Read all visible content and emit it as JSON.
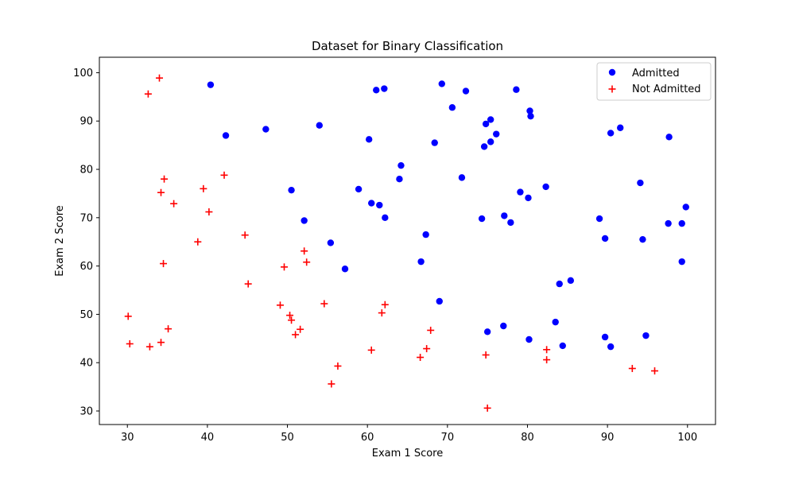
{
  "chart_data": {
    "type": "scatter",
    "title": "Dataset for Binary Classification",
    "xlabel": "Exam 1 Score",
    "ylabel": "Exam 2 Score",
    "xlim": [
      26.5,
      103.5
    ],
    "ylim": [
      27.2,
      103.2
    ],
    "xticks": [
      30,
      40,
      50,
      60,
      70,
      80,
      90,
      100
    ],
    "yticks": [
      30,
      40,
      50,
      60,
      70,
      80,
      90,
      100
    ],
    "grid": false,
    "legend_position": "top-right",
    "series": [
      {
        "name": "Admitted",
        "marker": "circle",
        "color": "#0000ff",
        "points": [
          [
            40.4,
            97.5
          ],
          [
            42.3,
            87.0
          ],
          [
            47.3,
            88.3
          ],
          [
            54.0,
            89.1
          ],
          [
            60.2,
            86.2
          ],
          [
            61.1,
            96.4
          ],
          [
            62.1,
            96.7
          ],
          [
            69.3,
            97.7
          ],
          [
            70.6,
            92.8
          ],
          [
            72.3,
            96.2
          ],
          [
            74.8,
            89.4
          ],
          [
            75.4,
            90.3
          ],
          [
            76.1,
            87.3
          ],
          [
            78.6,
            96.5
          ],
          [
            80.3,
            92.1
          ],
          [
            80.4,
            91.0
          ],
          [
            74.6,
            84.7
          ],
          [
            75.4,
            85.7
          ],
          [
            68.4,
            85.5
          ],
          [
            64.2,
            80.8
          ],
          [
            64.0,
            78.0
          ],
          [
            71.8,
            78.3
          ],
          [
            50.5,
            75.7
          ],
          [
            58.9,
            75.9
          ],
          [
            60.5,
            73.0
          ],
          [
            61.5,
            72.6
          ],
          [
            62.2,
            70.0
          ],
          [
            52.1,
            69.4
          ],
          [
            55.4,
            64.8
          ],
          [
            57.2,
            59.4
          ],
          [
            67.3,
            66.5
          ],
          [
            66.7,
            60.9
          ],
          [
            69.0,
            52.7
          ],
          [
            74.3,
            69.8
          ],
          [
            77.1,
            70.4
          ],
          [
            77.9,
            69.0
          ],
          [
            79.1,
            75.3
          ],
          [
            80.1,
            74.1
          ],
          [
            82.3,
            76.4
          ],
          [
            89.0,
            69.8
          ],
          [
            89.7,
            65.7
          ],
          [
            90.4,
            87.5
          ],
          [
            91.6,
            88.6
          ],
          [
            97.7,
            86.7
          ],
          [
            94.1,
            77.2
          ],
          [
            97.6,
            68.8
          ],
          [
            99.3,
            68.8
          ],
          [
            99.8,
            72.2
          ],
          [
            94.4,
            65.5
          ],
          [
            99.3,
            60.9
          ],
          [
            84.0,
            56.3
          ],
          [
            85.4,
            57.0
          ],
          [
            83.5,
            48.4
          ],
          [
            84.4,
            43.5
          ],
          [
            89.7,
            45.3
          ],
          [
            90.4,
            43.3
          ],
          [
            94.8,
            45.6
          ],
          [
            75.0,
            46.4
          ],
          [
            77.0,
            47.6
          ],
          [
            80.2,
            44.8
          ]
        ]
      },
      {
        "name": "Not Admitted",
        "marker": "plus",
        "color": "#ff0000",
        "points": [
          [
            34.0,
            98.9
          ],
          [
            32.6,
            95.6
          ],
          [
            34.6,
            78.0
          ],
          [
            34.2,
            75.2
          ],
          [
            35.8,
            72.9
          ],
          [
            39.5,
            76.0
          ],
          [
            42.1,
            78.8
          ],
          [
            40.2,
            71.2
          ],
          [
            38.8,
            65.0
          ],
          [
            44.7,
            66.4
          ],
          [
            34.5,
            60.5
          ],
          [
            45.1,
            56.3
          ],
          [
            49.6,
            59.8
          ],
          [
            52.1,
            63.1
          ],
          [
            52.4,
            60.8
          ],
          [
            30.1,
            49.6
          ],
          [
            30.3,
            43.9
          ],
          [
            32.8,
            43.3
          ],
          [
            34.2,
            44.2
          ],
          [
            35.1,
            47.0
          ],
          [
            49.1,
            51.9
          ],
          [
            50.3,
            49.8
          ],
          [
            50.5,
            48.8
          ],
          [
            51.6,
            46.9
          ],
          [
            51.0,
            45.8
          ],
          [
            54.6,
            52.2
          ],
          [
            56.3,
            39.3
          ],
          [
            55.5,
            35.6
          ],
          [
            60.5,
            42.6
          ],
          [
            61.8,
            50.3
          ],
          [
            62.2,
            52.0
          ],
          [
            67.9,
            46.7
          ],
          [
            67.4,
            42.9
          ],
          [
            66.6,
            41.1
          ],
          [
            74.8,
            41.6
          ],
          [
            75.0,
            30.6
          ],
          [
            82.4,
            42.7
          ],
          [
            82.4,
            40.6
          ],
          [
            93.1,
            38.8
          ],
          [
            95.9,
            38.3
          ]
        ]
      }
    ]
  }
}
